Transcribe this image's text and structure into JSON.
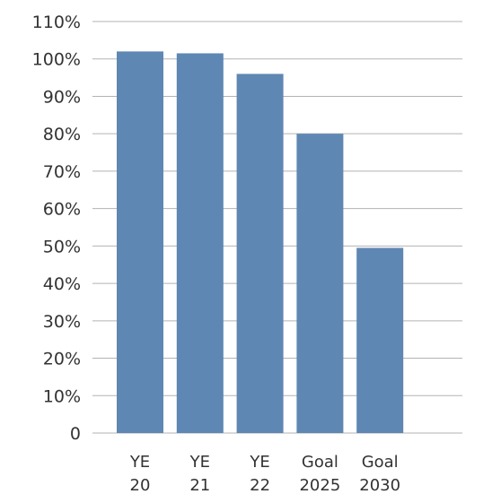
{
  "chart_data": {
    "type": "bar",
    "categories": [
      [
        "YE",
        "20"
      ],
      [
        "YE",
        "21"
      ],
      [
        "YE",
        "22"
      ],
      [
        "Goal",
        "2025"
      ],
      [
        "Goal",
        "2030"
      ]
    ],
    "values": [
      102,
      101.5,
      96,
      80,
      49.5
    ],
    "yticks": [
      0,
      10,
      20,
      30,
      40,
      50,
      60,
      70,
      80,
      90,
      100,
      110
    ],
    "ytick_labels": [
      "0",
      "10%",
      "20%",
      "30%",
      "40%",
      "50%",
      "60%",
      "70%",
      "80%",
      "90%",
      "100%",
      "110%"
    ],
    "ylim": [
      0,
      110
    ],
    "grid": true,
    "bar_color": "#5f87b3",
    "grid_color": "#b3b3b3"
  }
}
